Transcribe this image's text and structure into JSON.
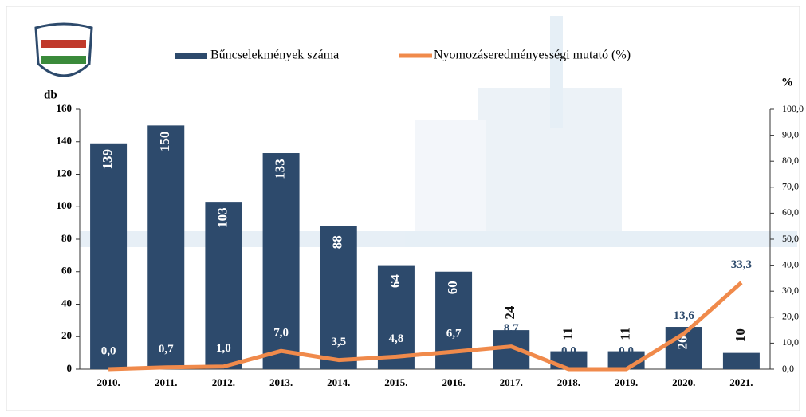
{
  "chart_data": {
    "type": "bar",
    "categories": [
      "2010.",
      "2011.",
      "2012.",
      "2013.",
      "2014.",
      "2015.",
      "2016.",
      "2017.",
      "2018.",
      "2019.",
      "2020.",
      "2021."
    ],
    "series": [
      {
        "name": "Bűncselekmények száma",
        "type": "bar",
        "color": "#2d4a6c",
        "values": [
          139,
          150,
          103,
          133,
          88,
          64,
          60,
          24,
          11,
          11,
          26,
          10
        ]
      },
      {
        "name": "Nyomozáseredményességi mutató (%)",
        "type": "line",
        "axis": "y2",
        "color": "#f08a4b",
        "values": [
          0,
          0.7,
          1.0,
          7.0,
          3.5,
          4.8,
          6.7,
          8.7,
          0,
          0,
          13.6,
          33.3
        ],
        "value_labels": [
          "0,0",
          "0,7",
          "1,0",
          "7,0",
          "3,5",
          "4,8",
          "6,7",
          "8,7",
          "0,0",
          "0,0",
          "13,6",
          "33,3"
        ]
      }
    ],
    "y_label": "db",
    "y2_label": "%",
    "ylim": [
      0,
      160
    ],
    "yticks": [
      0,
      20,
      40,
      60,
      80,
      100,
      120,
      140,
      160
    ],
    "y2lim": [
      0,
      100
    ],
    "y2ticks": [
      {
        "value": 0,
        "label": "0,0"
      },
      {
        "value": 10,
        "label": "10,0"
      },
      {
        "value": 20,
        "label": "20,0"
      },
      {
        "value": 30,
        "label": "30,0"
      },
      {
        "value": 40,
        "label": "40,0"
      },
      {
        "value": 50,
        "label": "50,0"
      },
      {
        "value": 60,
        "label": "60,0"
      },
      {
        "value": 70,
        "label": "70,0"
      },
      {
        "value": 80,
        "label": "80,0"
      },
      {
        "value": 90,
        "label": "90,0"
      },
      {
        "value": 100,
        "label": "100,0"
      }
    ],
    "legend": "top"
  }
}
